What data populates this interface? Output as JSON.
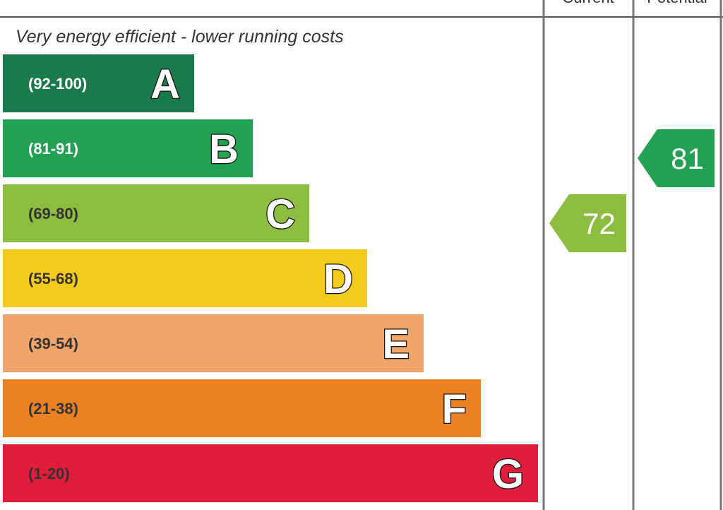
{
  "header": {
    "current": "Current",
    "potential": "Potential"
  },
  "caption": "Very energy efficient - lower running costs",
  "bands": [
    {
      "range": "(92-100)",
      "letter": "A",
      "color": "#1a7a4c"
    },
    {
      "range": "(81-91)",
      "letter": "B",
      "color": "#22a153"
    },
    {
      "range": "(69-80)",
      "letter": "C",
      "color": "#8dbd40"
    },
    {
      "range": "(55-68)",
      "letter": "D",
      "color": "#f4cb19"
    },
    {
      "range": "(39-54)",
      "letter": "E",
      "color": "#f0a66b"
    },
    {
      "range": "(21-38)",
      "letter": "F",
      "color": "#ec8124"
    },
    {
      "range": "(1-20)",
      "letter": "G",
      "color": "#e21d3c"
    }
  ],
  "current": 72,
  "potential": 81
}
